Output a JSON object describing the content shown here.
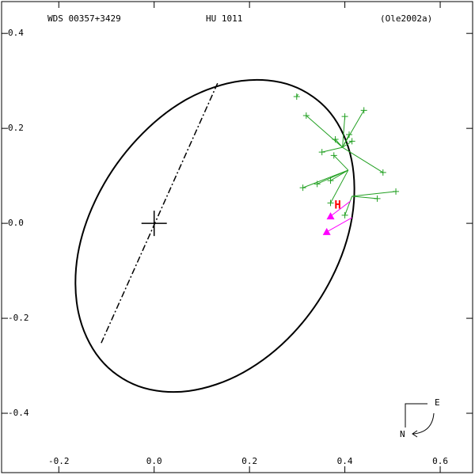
{
  "chart_data": {
    "type": "orbit",
    "title": "WDS 00357+3429",
    "subtitle": "HU 1011",
    "reference": "(Ole2002a)",
    "xlim": [
      -0.32,
      0.668
    ],
    "ylim": [
      -0.525,
      0.467
    ],
    "xticks": [
      -0.2,
      {
        "value": 0,
        "label": "0.0"
      },
      0.2,
      0.4,
      0.6
    ],
    "yticks": [
      0.4,
      0.2,
      {
        "value": 0,
        "label": "0.0"
      },
      -0.2,
      -0.4
    ],
    "orbit": {
      "color": "#000000",
      "x": [
        0.415,
        0.414,
        0.37,
        0.289,
        0.183,
        0.068,
        -0.036,
        -0.116,
        -0.16,
        -0.159,
        -0.114,
        -0.033,
        0.073,
        0.187,
        0.292,
        0.372
      ],
      "y": [
        0.012,
        0.134,
        0.232,
        0.29,
        0.3,
        0.261,
        0.177,
        0.063,
        -0.065,
        -0.187,
        -0.285,
        -0.343,
        -0.353,
        -0.314,
        -0.231,
        -0.116
      ]
    },
    "node_line": {
      "color": "#000000",
      "x": [
        0.133,
        -0.111
      ],
      "y": [
        0.295,
        -0.252
      ]
    },
    "primary": {
      "x": 0,
      "y": 0
    },
    "observations": {
      "color": "#22a022",
      "x": [
        0.299,
        0.319,
        0.4,
        0.44,
        0.38,
        0.409,
        0.415,
        0.352,
        0.377,
        0.48,
        0.312,
        0.342,
        0.37,
        0.507,
        0.468,
        0.4,
        0.37
      ],
      "y": [
        0.267,
        0.227,
        0.225,
        0.238,
        0.177,
        0.187,
        0.173,
        0.15,
        0.143,
        0.107,
        0.075,
        0.083,
        0.09,
        0.067,
        0.052,
        0.017,
        0.043
      ],
      "pred_x": [
        0.302,
        0.395,
        0.395,
        0.395,
        0.395,
        0.395,
        0.395,
        0.395,
        0.407,
        0.395,
        0.407,
        0.407,
        0.407,
        0.415,
        0.415,
        0.415,
        0.407
      ],
      "pred_y": [
        0.272,
        0.16,
        0.16,
        0.16,
        0.16,
        0.16,
        0.16,
        0.16,
        0.112,
        0.16,
        0.112,
        0.112,
        0.112,
        0.057,
        0.057,
        0.057,
        0.112
      ]
    },
    "recent": {
      "color": "#ff00ff",
      "x": [
        0.37,
        0.362
      ],
      "y": [
        0.015,
        -0.018
      ],
      "pred_x": [
        0.412,
        0.415
      ],
      "pred_y": [
        0.047,
        0.012
      ]
    },
    "annotation": {
      "text": "H",
      "x": 0.385,
      "y": 0.038,
      "color": "#ff0000"
    },
    "compass": {
      "east": "E",
      "north": "N"
    }
  }
}
